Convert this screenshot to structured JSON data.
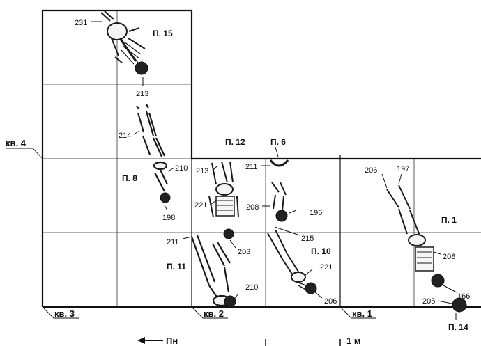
{
  "squares": [
    {
      "id": "sq1",
      "label": "кв. 1"
    },
    {
      "id": "sq2",
      "label": "кв. 2"
    },
    {
      "id": "sq3",
      "label": "кв. 3"
    },
    {
      "id": "sq4",
      "label": "кв. 4"
    }
  ],
  "burials": [
    {
      "id": "b15",
      "label": "П. 15"
    },
    {
      "id": "b12",
      "label": "П. 12"
    },
    {
      "id": "b6",
      "label": "П. 6"
    },
    {
      "id": "b8",
      "label": "П. 8"
    },
    {
      "id": "b1",
      "label": "П. 1"
    },
    {
      "id": "b11",
      "label": "П. 11"
    },
    {
      "id": "b10",
      "label": "П. 10"
    },
    {
      "id": "b14",
      "label": "П. 14"
    }
  ],
  "depth_labels": [
    {
      "id": "d231",
      "text": "231"
    },
    {
      "id": "d213a",
      "text": "213"
    },
    {
      "id": "d214",
      "text": "214"
    },
    {
      "id": "d210a",
      "text": "210"
    },
    {
      "id": "d198",
      "text": "198"
    },
    {
      "id": "d213b",
      "text": "213"
    },
    {
      "id": "d221a",
      "text": "221"
    },
    {
      "id": "d211a",
      "text": "211"
    },
    {
      "id": "d203",
      "text": "203"
    },
    {
      "id": "d210b",
      "text": "210"
    },
    {
      "id": "d211b",
      "text": "211"
    },
    {
      "id": "d208a",
      "text": "208"
    },
    {
      "id": "d196",
      "text": "196"
    },
    {
      "id": "d215",
      "text": "215"
    },
    {
      "id": "d221b",
      "text": "221"
    },
    {
      "id": "d206a",
      "text": "206"
    },
    {
      "id": "d206b",
      "text": "206"
    },
    {
      "id": "d197",
      "text": "197"
    },
    {
      "id": "d208b",
      "text": "208"
    },
    {
      "id": "d205",
      "text": "205"
    },
    {
      "id": "d166",
      "text": "166"
    }
  ],
  "legend": {
    "direction": "Пн",
    "scale": "1 м"
  }
}
